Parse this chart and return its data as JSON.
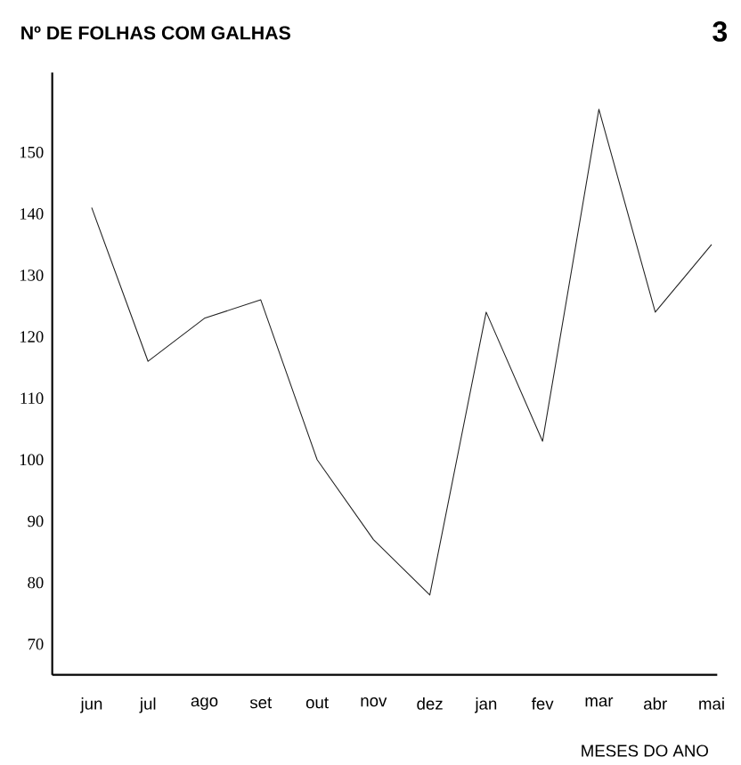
{
  "chart_data": {
    "type": "line",
    "title": "Nº DE FOLHAS COM GALHAS",
    "annotations": [
      "3"
    ],
    "xlabel": "MESES DO ANO",
    "categories": [
      "jun",
      "jul",
      "ago",
      "set",
      "out",
      "nov",
      "dez",
      "jan",
      "fev",
      "mar",
      "abr",
      "mai"
    ],
    "values": [
      141,
      116,
      123,
      126,
      100,
      87,
      78,
      124,
      103,
      157,
      124,
      135
    ],
    "color": "#222222",
    "ylim": [
      65,
      163
    ],
    "yticks": [
      70,
      80,
      90,
      100,
      110,
      120,
      130,
      140,
      150
    ],
    "grid": false,
    "marker": "none",
    "line_style": "solid"
  }
}
